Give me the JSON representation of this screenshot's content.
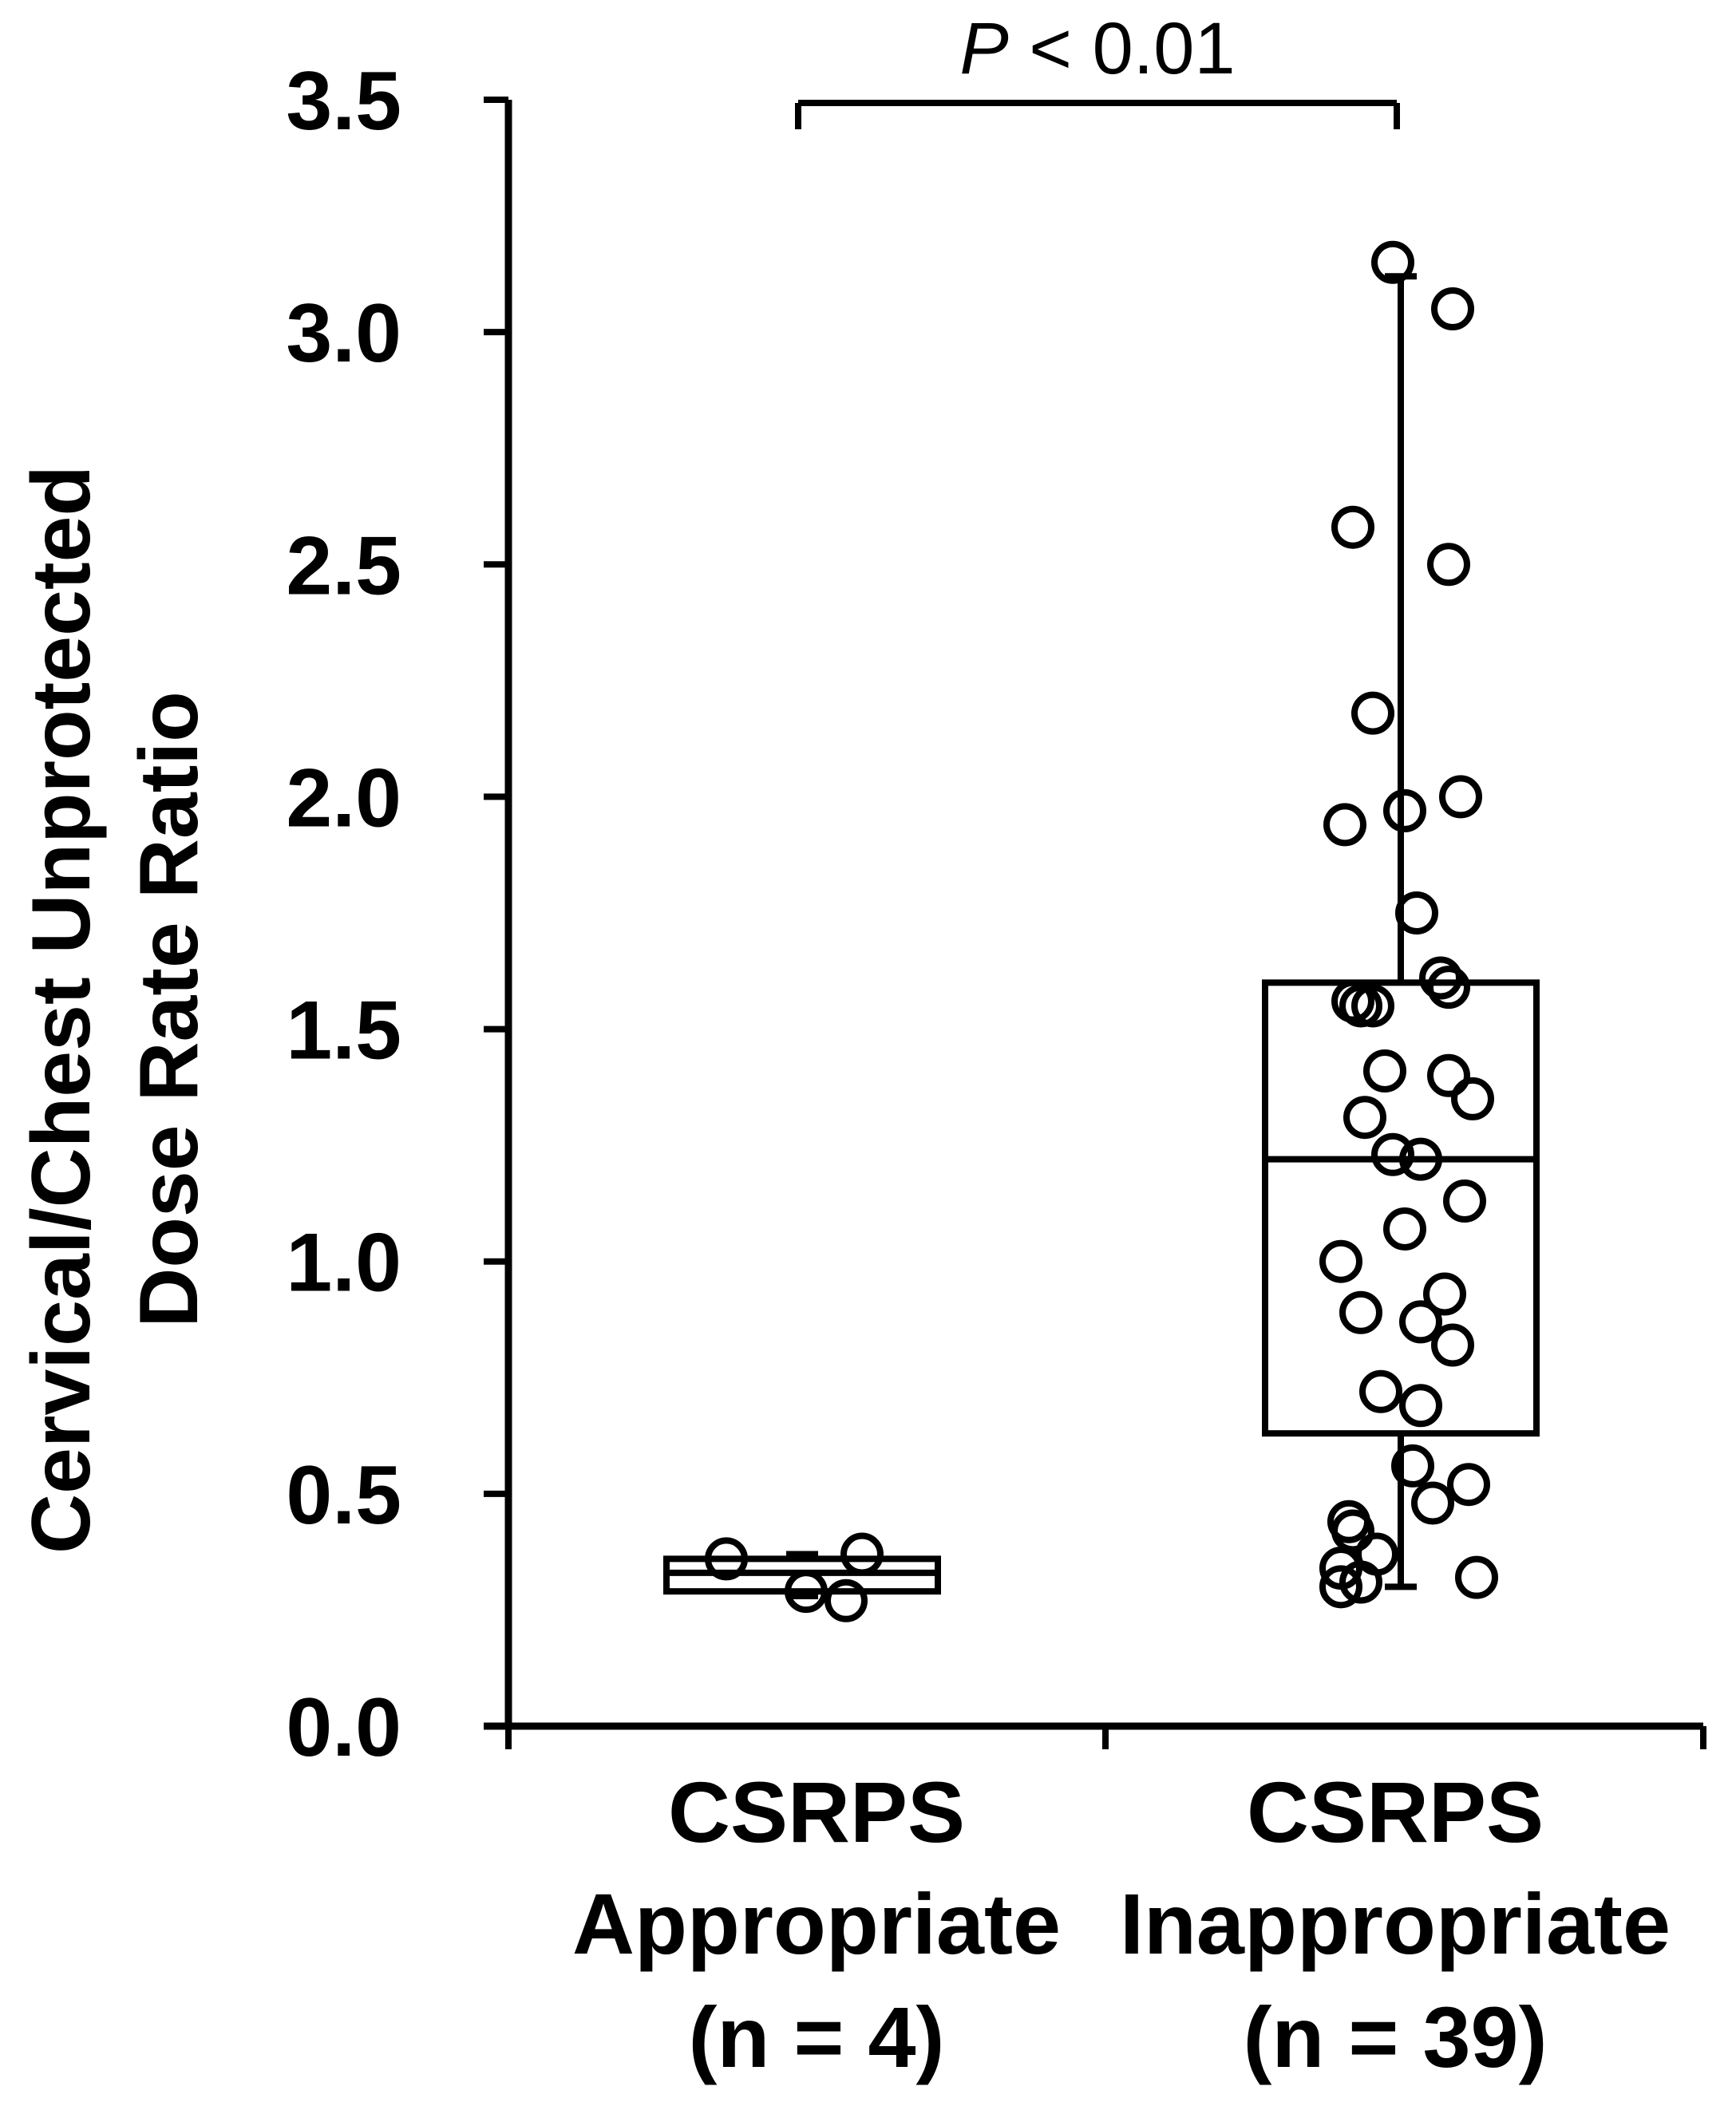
{
  "chart_data": {
    "type": "box",
    "ylabel_lines": [
      "Cervical/Chest Unprotected",
      "Dose Rate Ratio"
    ],
    "ylim": [
      0,
      3.5
    ],
    "yticks": [
      "0.0",
      "0.5",
      "1.0",
      "1.5",
      "2.0",
      "2.5",
      "3.0",
      "3.5"
    ],
    "grid": false,
    "significance": {
      "italic": "P",
      "rest": " < 0.01"
    },
    "colors": {
      "stroke": "#000000",
      "marker_fill": "#ffffff"
    },
    "groups": [
      {
        "label_lines": [
          "CSRPS",
          "Appropriate",
          "(n = 4)"
        ],
        "box": {
          "whisker_low": 0.28,
          "q1": 0.29,
          "median": 0.33,
          "q3": 0.36,
          "whisker_high": 0.37
        },
        "points": [
          {
            "offset": -0.18,
            "y": 0.36
          },
          {
            "offset": 0.02,
            "y": 0.29
          },
          {
            "offset": 0.12,
            "y": 0.27
          },
          {
            "offset": 0.16,
            "y": 0.37
          }
        ]
      },
      {
        "label_lines": [
          "CSRPS",
          "Inappropriate",
          "(n = 39)"
        ],
        "box": {
          "whisker_low": 0.3,
          "q1": 0.63,
          "median": 1.22,
          "q3": 1.6,
          "whisker_high": 3.12
        },
        "points": [
          {
            "offset": -0.01,
            "y": 3.15
          },
          {
            "offset": 0.14,
            "y": 3.05
          },
          {
            "offset": -0.11,
            "y": 2.58
          },
          {
            "offset": 0.13,
            "y": 2.5
          },
          {
            "offset": -0.06,
            "y": 2.18
          },
          {
            "offset": 0.16,
            "y": 2.0
          },
          {
            "offset": 0.02,
            "y": 1.97
          },
          {
            "offset": -0.13,
            "y": 1.94
          },
          {
            "offset": 0.05,
            "y": 1.75
          },
          {
            "offset": 0.11,
            "y": 1.61
          },
          {
            "offset": 0.13,
            "y": 1.59
          },
          {
            "offset": -0.11,
            "y": 1.56
          },
          {
            "offset": -0.09,
            "y": 1.55
          },
          {
            "offset": -0.06,
            "y": 1.55
          },
          {
            "offset": -0.03,
            "y": 1.41
          },
          {
            "offset": 0.13,
            "y": 1.4
          },
          {
            "offset": 0.19,
            "y": 1.35
          },
          {
            "offset": -0.08,
            "y": 1.31
          },
          {
            "offset": -0.01,
            "y": 1.23
          },
          {
            "offset": 0.06,
            "y": 1.22
          },
          {
            "offset": 0.17,
            "y": 1.13
          },
          {
            "offset": 0.02,
            "y": 1.07
          },
          {
            "offset": -0.14,
            "y": 1.0
          },
          {
            "offset": 0.12,
            "y": 0.93
          },
          {
            "offset": -0.09,
            "y": 0.89
          },
          {
            "offset": 0.06,
            "y": 0.87
          },
          {
            "offset": 0.14,
            "y": 0.82
          },
          {
            "offset": -0.04,
            "y": 0.72
          },
          {
            "offset": 0.06,
            "y": 0.69
          },
          {
            "offset": 0.04,
            "y": 0.56
          },
          {
            "offset": 0.18,
            "y": 0.52
          },
          {
            "offset": 0.09,
            "y": 0.48
          },
          {
            "offset": -0.12,
            "y": 0.44
          },
          {
            "offset": -0.11,
            "y": 0.42
          },
          {
            "offset": -0.05,
            "y": 0.37
          },
          {
            "offset": -0.14,
            "y": 0.34
          },
          {
            "offset": -0.14,
            "y": 0.3
          },
          {
            "offset": -0.09,
            "y": 0.31
          },
          {
            "offset": 0.2,
            "y": 0.32
          }
        ]
      }
    ]
  }
}
